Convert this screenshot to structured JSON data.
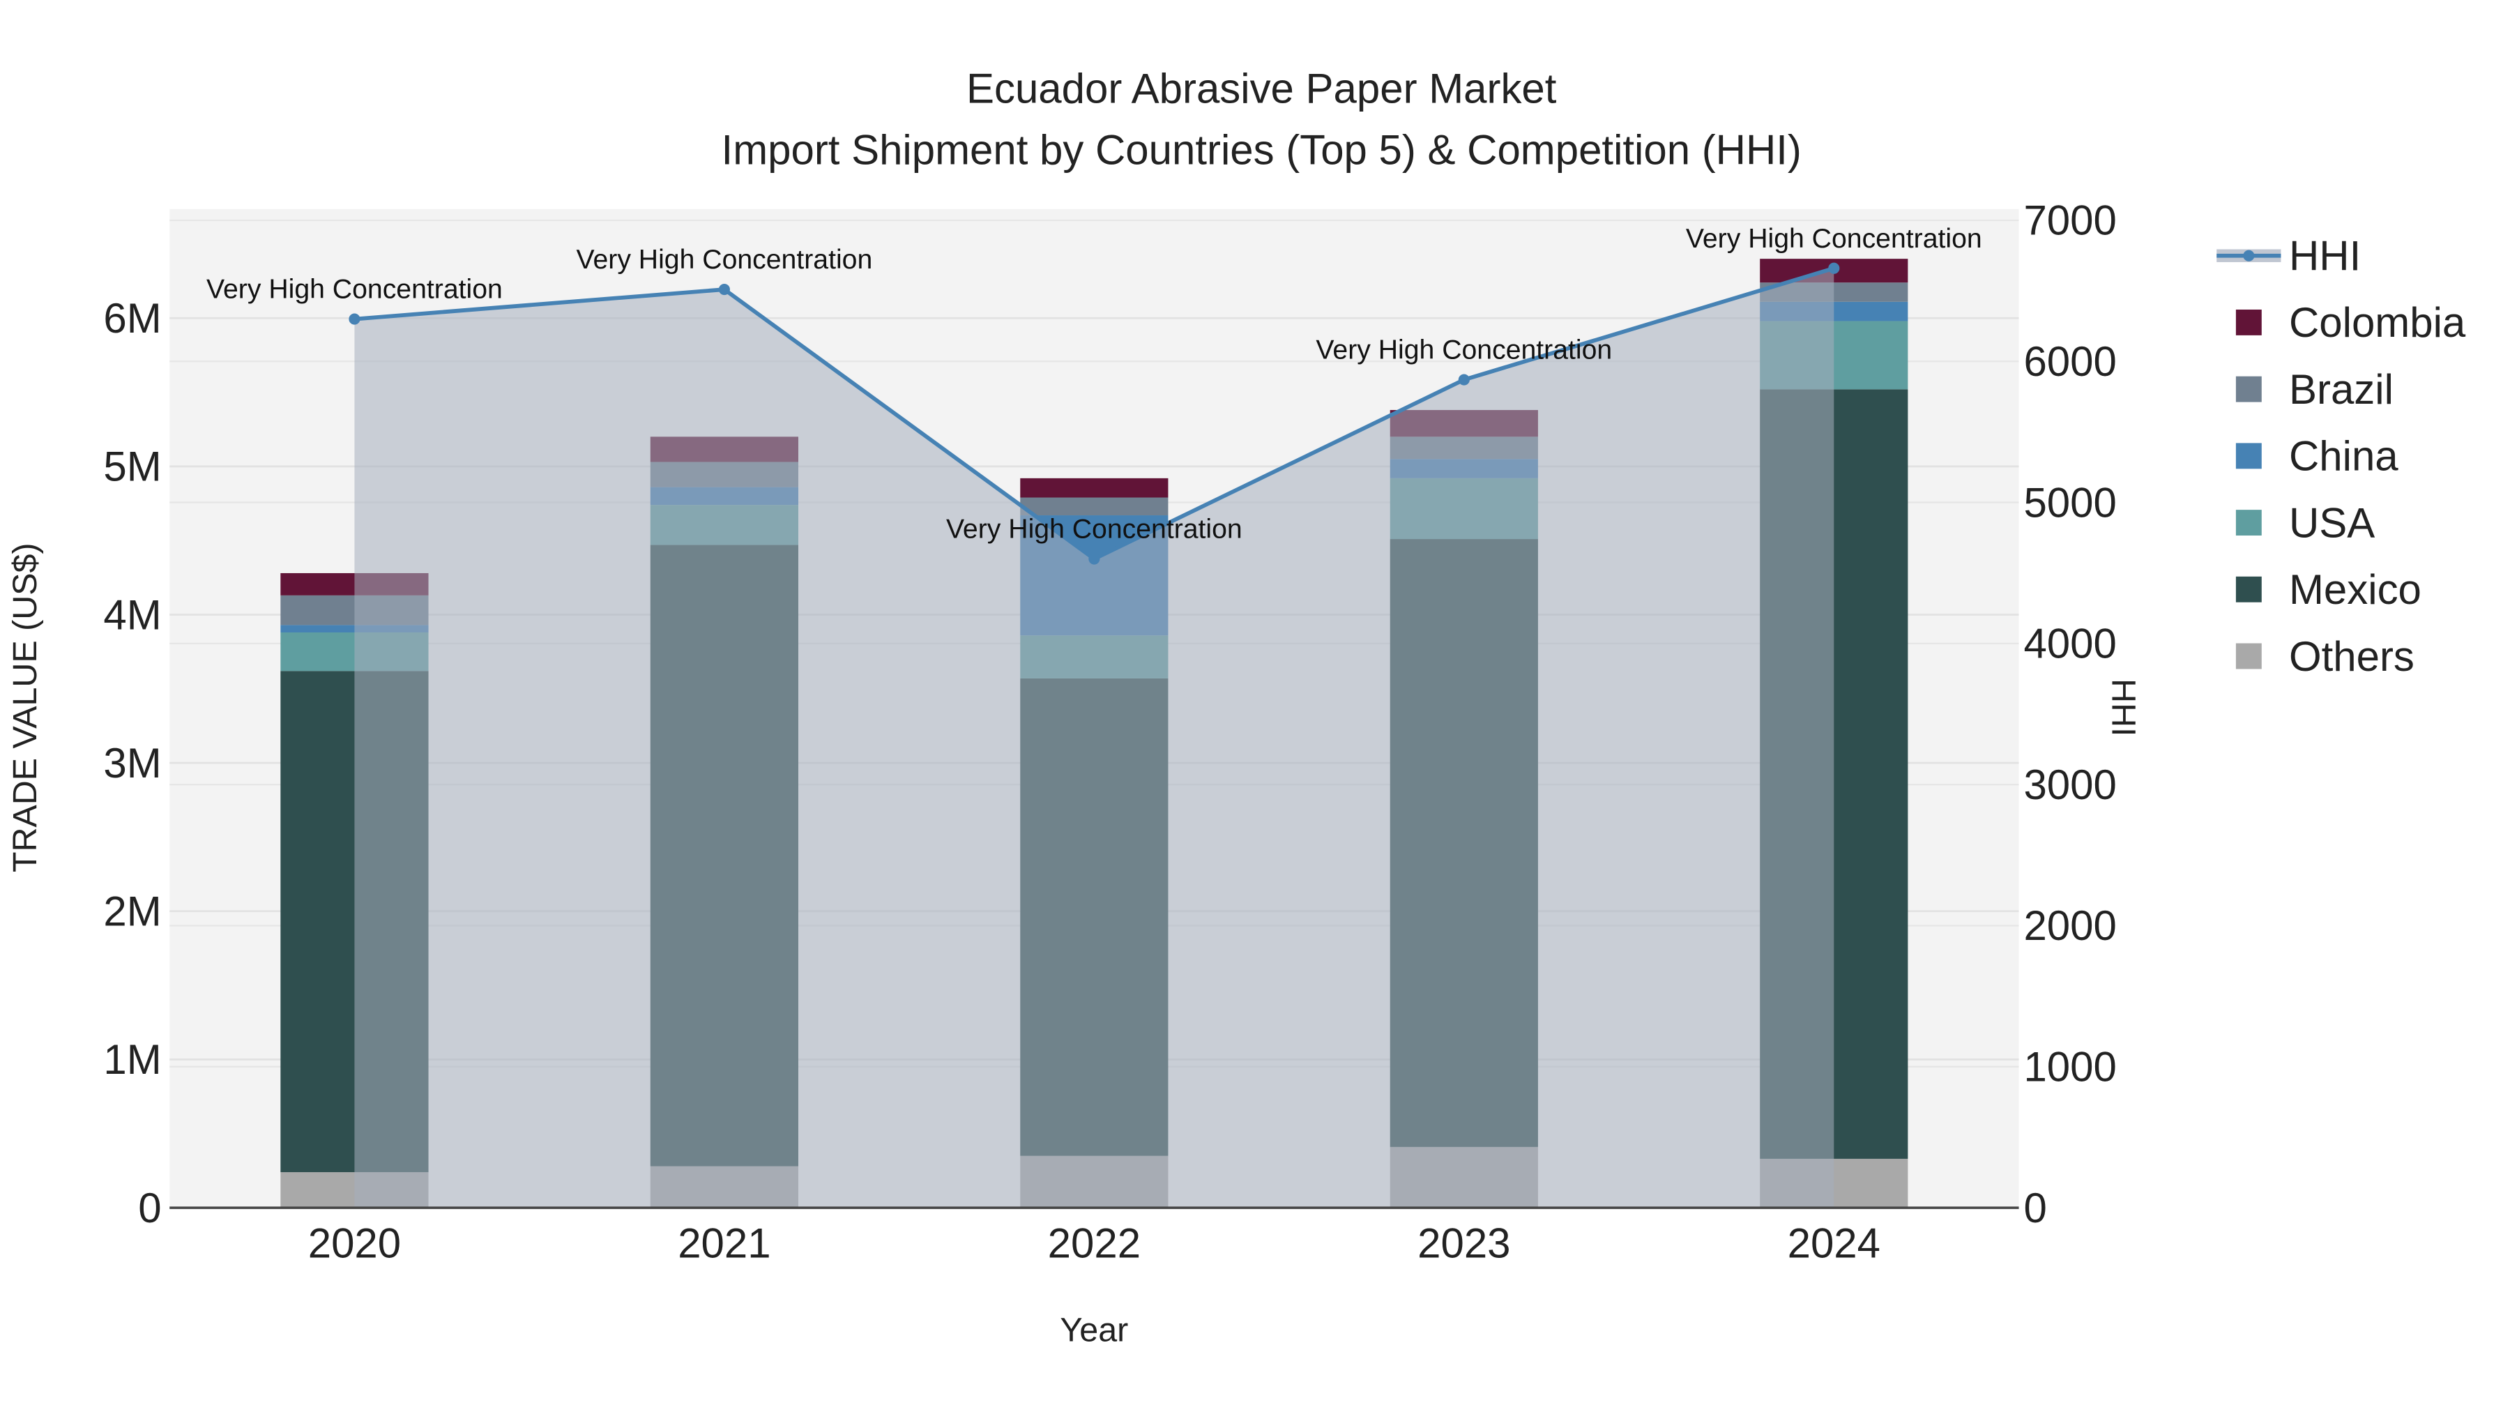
{
  "chart_data": {
    "type": "bar",
    "title": "Ecuador Abrasive Paper Market",
    "subtitle": "Import Shipment by Countries (Top 5) & Competition (HHI)",
    "xlabel": "Year",
    "ylabel": "TRADE VALUE (US$)",
    "y2label": "HHI",
    "categories": [
      "2020",
      "2021",
      "2022",
      "2023",
      "2024"
    ],
    "ylim": [
      0,
      6600000
    ],
    "y2lim": [
      0,
      7000
    ],
    "yticks": [
      {
        "v": 0,
        "label": "0"
      },
      {
        "v": 1000000,
        "label": "1M"
      },
      {
        "v": 2000000,
        "label": "2M"
      },
      {
        "v": 3000000,
        "label": "3M"
      },
      {
        "v": 4000000,
        "label": "4M"
      },
      {
        "v": 5000000,
        "label": "5M"
      },
      {
        "v": 6000000,
        "label": "6M"
      }
    ],
    "y2ticks": [
      {
        "v": 0,
        "label": "0"
      },
      {
        "v": 1000,
        "label": "1000"
      },
      {
        "v": 2000,
        "label": "2000"
      },
      {
        "v": 3000,
        "label": "3000"
      },
      {
        "v": 4000,
        "label": "4000"
      },
      {
        "v": 5000,
        "label": "5000"
      },
      {
        "v": 6000,
        "label": "6000"
      },
      {
        "v": 7000,
        "label": "7000"
      }
    ],
    "stack_order": [
      "Others",
      "Mexico",
      "USA",
      "China",
      "Brazil",
      "Colombia"
    ],
    "series": [
      {
        "name": "Colombia",
        "color": "#611437",
        "values": [
          150000,
          170000,
          130000,
          180000,
          160000
        ]
      },
      {
        "name": "Brazil",
        "color": "#708090",
        "values": [
          200000,
          170000,
          120000,
          150000,
          130000
        ]
      },
      {
        "name": "China",
        "color": "#4682b4",
        "values": [
          50000,
          120000,
          810000,
          130000,
          130000
        ]
      },
      {
        "name": "USA",
        "color": "#5f9ea0",
        "values": [
          260000,
          270000,
          290000,
          410000,
          460000
        ]
      },
      {
        "name": "Mexico",
        "color": "#2f4f4f",
        "values": [
          3380000,
          4190000,
          3220000,
          4100000,
          5190000
        ]
      },
      {
        "name": "Others",
        "color": "#a9a9a9",
        "values": [
          240000,
          280000,
          350000,
          410000,
          330000
        ]
      }
    ],
    "line": {
      "name": "HHI",
      "color": "#4682b4",
      "values": [
        6300,
        6510,
        4600,
        5870,
        6660
      ],
      "annotations": [
        "Very High Concentration",
        "Very High Concentration",
        "Very High Concentration",
        "Very High Concentration",
        "Very High Concentration"
      ]
    },
    "legend": {
      "placement": "right",
      "order": [
        "HHI",
        "Colombia",
        "Brazil",
        "China",
        "USA",
        "Mexico",
        "Others"
      ]
    },
    "grid": true
  }
}
